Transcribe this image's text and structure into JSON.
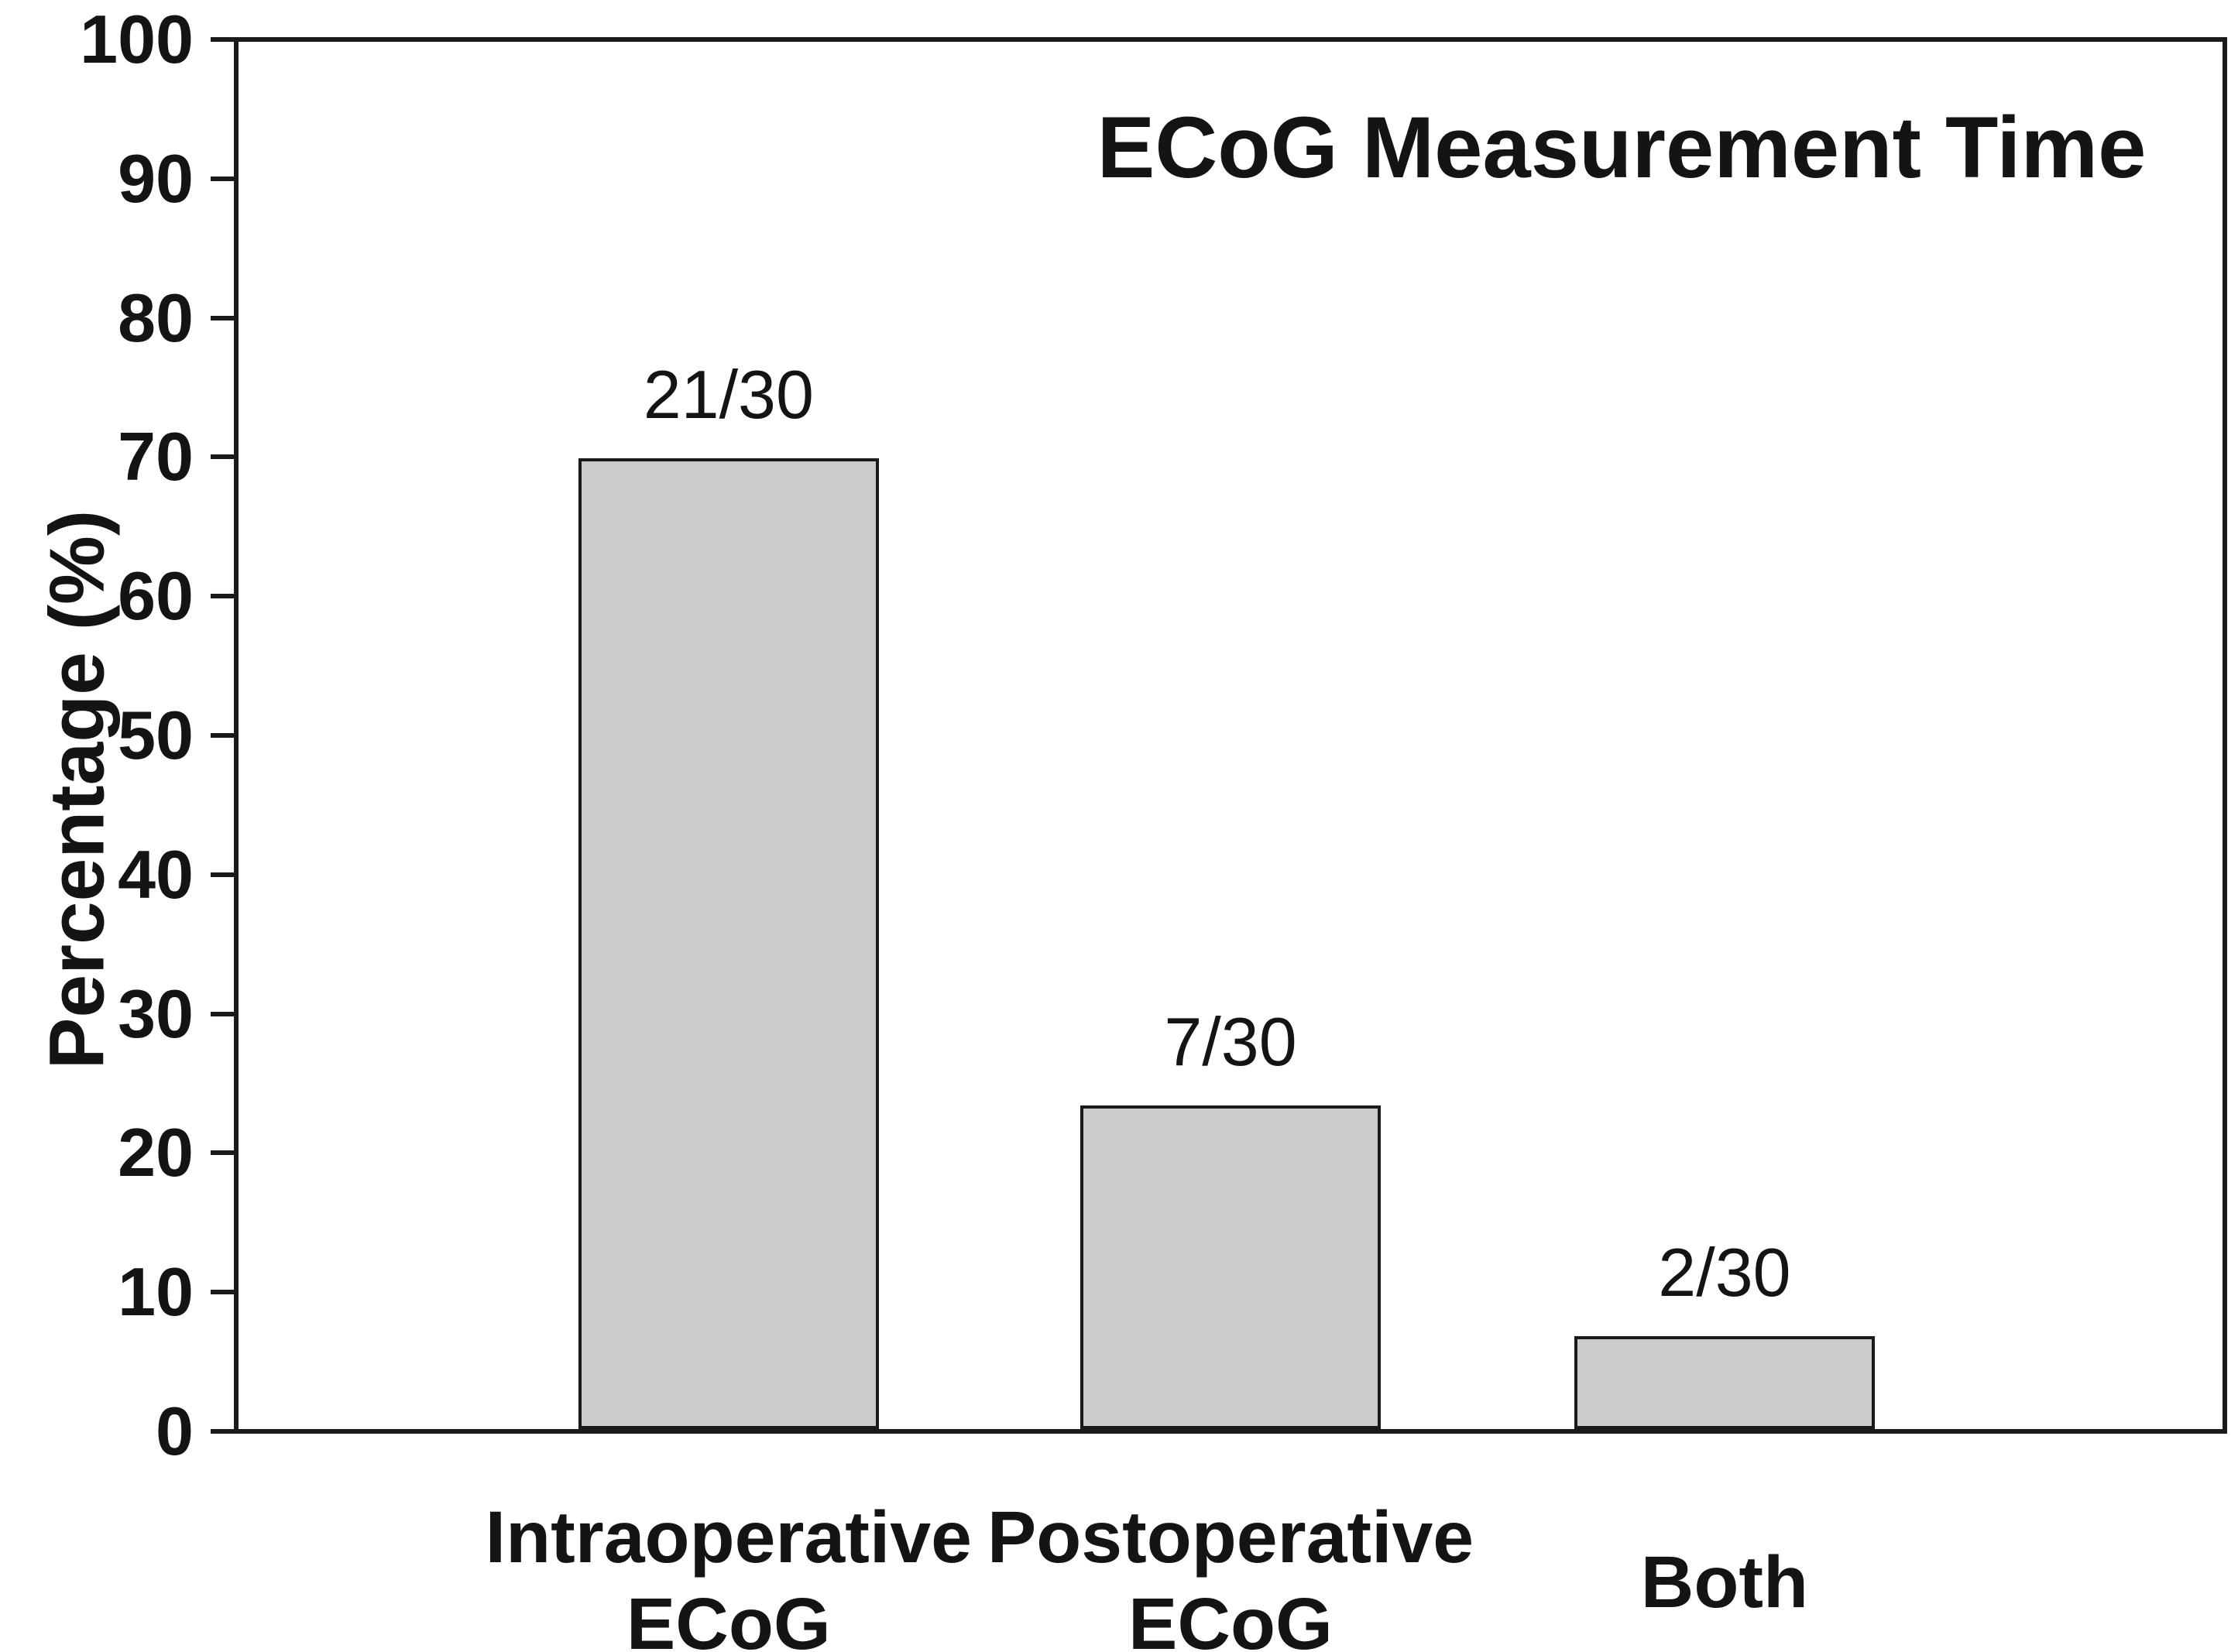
{
  "chart_data": {
    "type": "bar",
    "title": "ECoG Measurement Time",
    "ylabel": "Percentage (%)",
    "xlabel": "",
    "ylim": [
      0,
      100
    ],
    "yticks": [
      0,
      10,
      20,
      30,
      40,
      50,
      60,
      70,
      80,
      90,
      100
    ],
    "grid": false,
    "legend": false,
    "categories": [
      "Intraoperative\nECoG",
      "Postoperative\nECoG",
      "Both"
    ],
    "values": [
      70,
      23.3,
      6.7
    ],
    "bar_labels": [
      "21/30",
      "7/30",
      "2/30"
    ],
    "colors": {
      "bar_fill": "#cbcbcb",
      "bar_border": "#1a1a1a",
      "axis": "#1a1a1a",
      "text": "#141414",
      "background": "#ffffff"
    }
  }
}
